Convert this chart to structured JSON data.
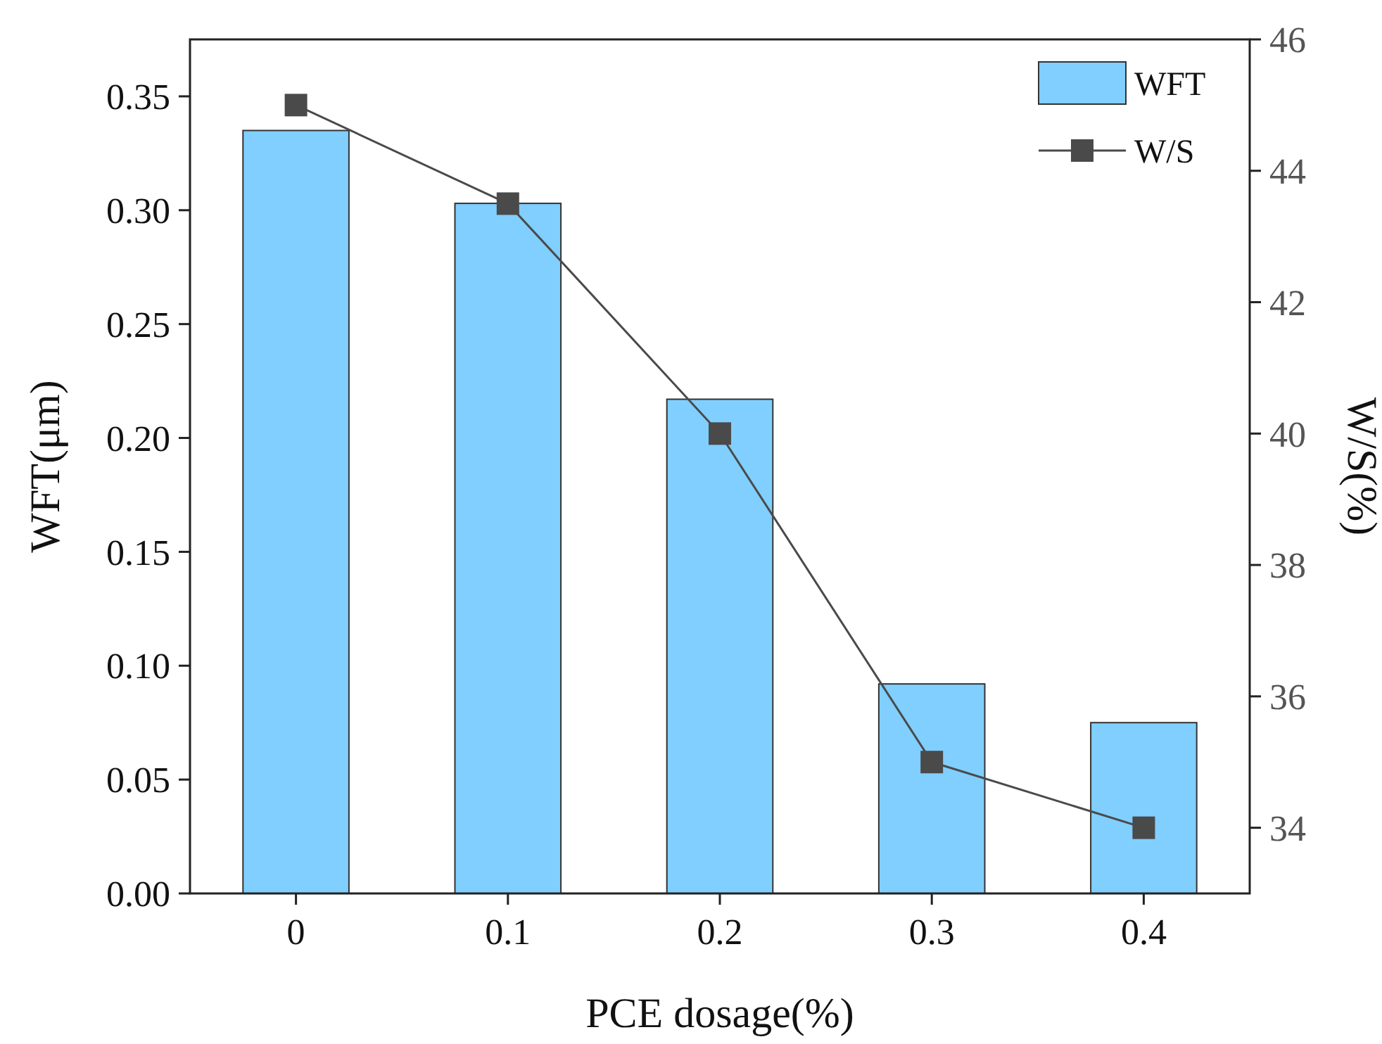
{
  "chart_data": {
    "type": "bar",
    "xlabel": "PCE dosage(%)",
    "ylabel": "WFT(μm)",
    "y2label": "W/S(%)",
    "categories": [
      "0",
      "0.1",
      "0.2",
      "0.3",
      "0.4"
    ],
    "series": [
      {
        "name": "WFT",
        "color": "#80cfff",
        "values": [
          0.335,
          0.303,
          0.217,
          0.092,
          0.075
        ]
      },
      {
        "name": "W/S",
        "type": "line",
        "axis": "y2",
        "color": "#4a4a4a",
        "values": [
          45,
          43.5,
          40,
          35,
          34
        ]
      }
    ],
    "ylim": [
      0,
      0.375
    ],
    "yticks": [
      {
        "value": 0,
        "label": "0.00"
      },
      {
        "value": 0.05,
        "label": "0.05"
      },
      {
        "value": 0.1,
        "label": "0.10"
      },
      {
        "value": 0.15,
        "label": "0.15"
      },
      {
        "value": 0.2,
        "label": "0.20"
      },
      {
        "value": 0.25,
        "label": "0.25"
      },
      {
        "value": 0.3,
        "label": "0.30"
      },
      {
        "value": 0.35,
        "label": "0.35"
      }
    ],
    "y2lim": [
      33,
      46
    ],
    "y2ticks": [
      34,
      36,
      38,
      40,
      42,
      44,
      46
    ],
    "marker": "square",
    "line_style": "solid",
    "legend": "top right",
    "grid": false
  }
}
